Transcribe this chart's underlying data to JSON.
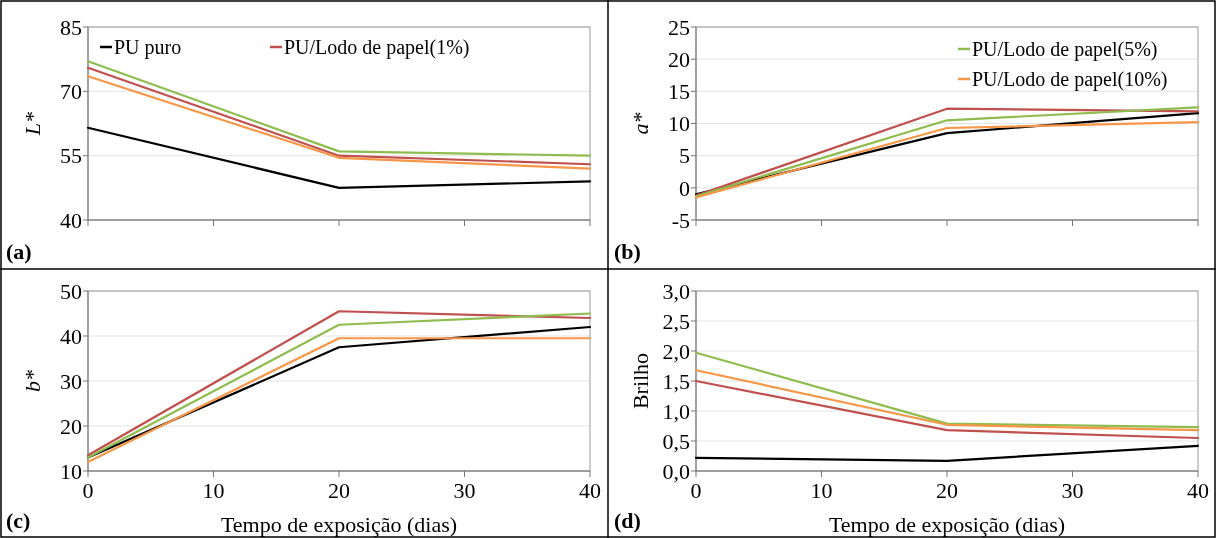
{
  "chart_data": [
    {
      "type": "line",
      "ylabel": "L*",
      "x": [
        0,
        20,
        40
      ],
      "xlim": [
        0,
        40
      ],
      "xticks": [
        0,
        10,
        20,
        30,
        40
      ],
      "ylim": [
        40,
        85
      ],
      "yticks": [
        40,
        55,
        70,
        85
      ],
      "tick_labels": "y",
      "grid": "y",
      "legend": "top",
      "annotations": [
        "(a)"
      ],
      "series": [
        {
          "name": "PU puro",
          "color": "#000000",
          "values": [
            61.5,
            47.5,
            49
          ]
        },
        {
          "name": "PU/Lodo de papel(1%)",
          "color": "#c0504d",
          "values": [
            75.5,
            55,
            53
          ]
        },
        {
          "color": "#8fbc4f",
          "values": [
            77,
            56,
            55
          ]
        },
        {
          "color": "#f79646",
          "values": [
            73.5,
            54.5,
            52
          ]
        }
      ]
    },
    {
      "type": "line",
      "ylabel": "a*",
      "x": [
        0,
        20,
        40
      ],
      "xlim": [
        0,
        40
      ],
      "xticks": [
        0,
        10,
        20,
        30,
        40
      ],
      "ylim": [
        -5,
        25
      ],
      "yticks": [
        -5,
        0,
        5,
        10,
        15,
        20,
        25
      ],
      "tick_labels": "y",
      "grid": "y",
      "legend": "top right",
      "annotations": [
        "(b)"
      ],
      "series": [
        {
          "color": "#000000",
          "values": [
            -1,
            8.5,
            11.6
          ]
        },
        {
          "color": "#c0504d",
          "values": [
            -1.2,
            12.3,
            11.9
          ]
        },
        {
          "name": "PU/Lodo de papel(5%)",
          "color": "#8fbc4f",
          "values": [
            -1.3,
            10.5,
            12.5
          ]
        },
        {
          "name": "PU/Lodo de papel(10%)",
          "color": "#f79646",
          "values": [
            -1.5,
            9.3,
            10.2
          ]
        }
      ]
    },
    {
      "type": "line",
      "ylabel": "b*",
      "xlabel": "Tempo de exposição (dias)",
      "x": [
        0,
        20,
        40
      ],
      "xlim": [
        0,
        40
      ],
      "xticks": [
        0,
        10,
        20,
        30,
        40
      ],
      "ylim": [
        10,
        50
      ],
      "yticks": [
        10,
        20,
        30,
        40,
        50
      ],
      "grid": "y",
      "annotations": [
        "(c)"
      ],
      "series": [
        {
          "color": "#000000",
          "values": [
            13,
            37.5,
            42
          ]
        },
        {
          "color": "#c0504d",
          "values": [
            13.5,
            45.5,
            44
          ]
        },
        {
          "color": "#8fbc4f",
          "values": [
            13,
            42.5,
            45
          ]
        },
        {
          "color": "#f79646",
          "values": [
            12,
            39.5,
            39.5
          ]
        }
      ]
    },
    {
      "type": "line",
      "ylabel": "Brilho",
      "xlabel": "Tempo de exposição (dias)",
      "x": [
        0,
        20,
        40
      ],
      "xlim": [
        0,
        40
      ],
      "xticks": [
        0,
        10,
        20,
        30,
        40
      ],
      "ylim": [
        0,
        3
      ],
      "yticks": [
        {
          "value": 0,
          "label": "0,0"
        },
        {
          "value": 0.5,
          "label": "0,5"
        },
        {
          "value": 1,
          "label": "1,0"
        },
        {
          "value": 1.5,
          "label": "1,5"
        },
        {
          "value": 2,
          "label": "2,0"
        },
        {
          "value": 2.5,
          "label": "2,5"
        },
        {
          "value": 3,
          "label": "3,0"
        }
      ],
      "grid": "y",
      "annotations": [
        "(d)"
      ],
      "series": [
        {
          "color": "#000000",
          "values": [
            0.22,
            0.17,
            0.42
          ]
        },
        {
          "color": "#c0504d",
          "values": [
            1.5,
            0.68,
            0.55
          ]
        },
        {
          "color": "#8fbc4f",
          "values": [
            1.97,
            0.79,
            0.73
          ]
        },
        {
          "color": "#f79646",
          "values": [
            1.68,
            0.77,
            0.68
          ]
        }
      ]
    }
  ]
}
